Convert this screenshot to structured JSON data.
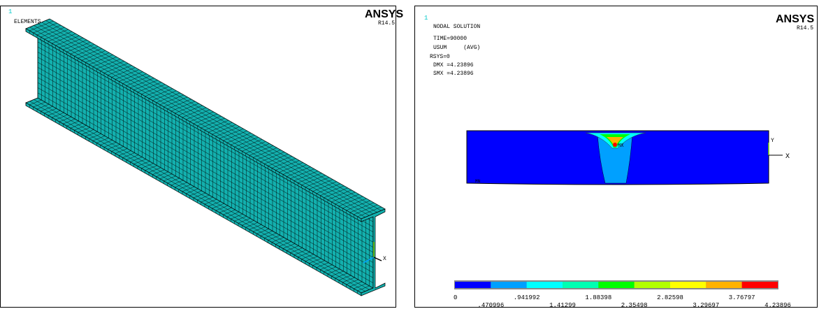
{
  "left_panel": {
    "window_number": "1",
    "label": "ELEMENTS",
    "logo": "ANSYS",
    "version": "R14.5",
    "axis_x": "X"
  },
  "right_panel": {
    "window_number": "1",
    "title": "NODAL SOLUTION",
    "lines": [
      "TIME=90000",
      "USUM     (AVG)",
      "RSYS=0",
      "DMX =4.23896",
      "SMX =4.23896"
    ],
    "logo": "ANSYS",
    "version": "R14.5",
    "axis_x": "X",
    "axis_y": "Y",
    "max_label": "MX",
    "min_label": "MN",
    "legend": {
      "colors": [
        "#0000ff",
        "#00a0ff",
        "#00ffff",
        "#00ffb2",
        "#00ff00",
        "#b2ff00",
        "#ffff00",
        "#ffb200",
        "#ff0000"
      ],
      "labels": [
        "0",
        ".470996",
        ".941992",
        "1.41299",
        "1.88398",
        "2.35498",
        "2.82598",
        "3.29697",
        "3.76797",
        "4.23896"
      ]
    }
  }
}
